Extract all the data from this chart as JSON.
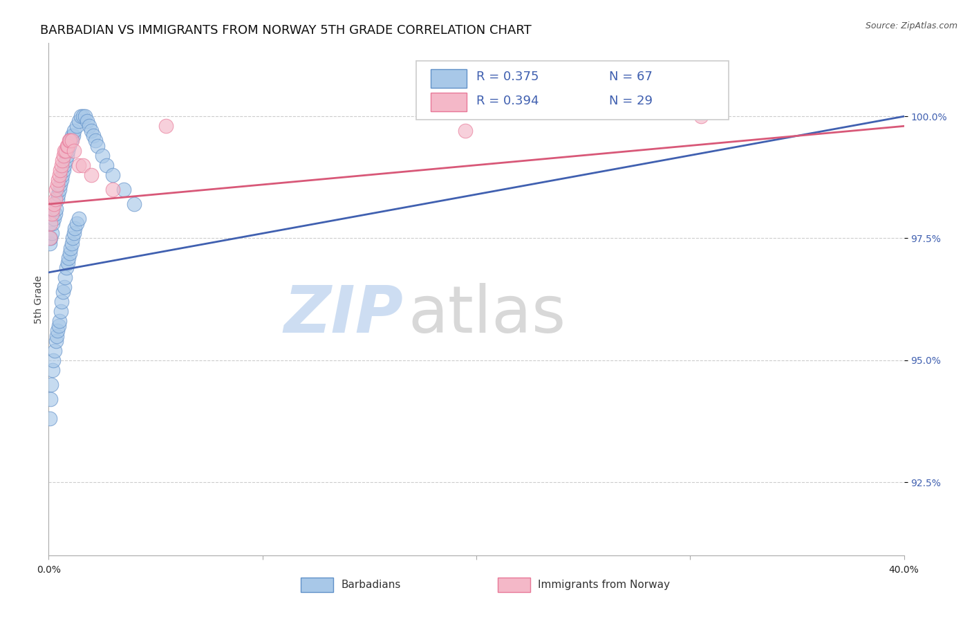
{
  "title": "BARBADIAN VS IMMIGRANTS FROM NORWAY 5TH GRADE CORRELATION CHART",
  "source": "Source: ZipAtlas.com",
  "ylabel": "5th Grade",
  "xlim": [
    0.0,
    40.0
  ],
  "ylim": [
    91.0,
    101.5
  ],
  "yticks": [
    92.5,
    95.0,
    97.5,
    100.0
  ],
  "ytick_labels": [
    "92.5%",
    "95.0%",
    "97.5%",
    "100.0%"
  ],
  "xticks": [
    0.0,
    10.0,
    20.0,
    30.0,
    40.0
  ],
  "blue_R": 0.375,
  "blue_N": 67,
  "pink_R": 0.394,
  "pink_N": 29,
  "blue_color": "#a8c8e8",
  "pink_color": "#f4b8c8",
  "blue_edge_color": "#6090c8",
  "pink_edge_color": "#e87898",
  "blue_line_color": "#4060b0",
  "pink_line_color": "#d85878",
  "text_color": "#4060b0",
  "background_color": "#ffffff",
  "grid_color": "#cccccc",
  "title_fontsize": 13,
  "axis_label_fontsize": 10,
  "tick_fontsize": 10,
  "legend_fontsize": 13,
  "blue_x": [
    0.05,
    0.1,
    0.15,
    0.2,
    0.25,
    0.3,
    0.35,
    0.4,
    0.45,
    0.5,
    0.55,
    0.6,
    0.65,
    0.7,
    0.75,
    0.8,
    0.85,
    0.9,
    0.95,
    1.0,
    1.05,
    1.1,
    1.15,
    1.2,
    1.3,
    1.4,
    1.5,
    1.6,
    1.7,
    1.8,
    1.9,
    2.0,
    2.1,
    2.2,
    2.3,
    2.5,
    2.7,
    3.0,
    3.5,
    4.0,
    0.05,
    0.08,
    0.12,
    0.18,
    0.22,
    0.28,
    0.33,
    0.38,
    0.42,
    0.48,
    0.52,
    0.58,
    0.62,
    0.68,
    0.72,
    0.78,
    0.82,
    0.88,
    0.92,
    0.98,
    1.02,
    1.08,
    1.12,
    1.18,
    1.22,
    1.32,
    1.42
  ],
  "blue_y": [
    97.4,
    97.5,
    97.6,
    97.8,
    97.9,
    98.0,
    98.1,
    98.3,
    98.4,
    98.5,
    98.6,
    98.7,
    98.8,
    98.9,
    99.0,
    99.1,
    99.2,
    99.3,
    99.4,
    99.5,
    99.5,
    99.6,
    99.6,
    99.7,
    99.8,
    99.9,
    100.0,
    100.0,
    100.0,
    99.9,
    99.8,
    99.7,
    99.6,
    99.5,
    99.4,
    99.2,
    99.0,
    98.8,
    98.5,
    98.2,
    93.8,
    94.2,
    94.5,
    94.8,
    95.0,
    95.2,
    95.4,
    95.5,
    95.6,
    95.7,
    95.8,
    96.0,
    96.2,
    96.4,
    96.5,
    96.7,
    96.9,
    97.0,
    97.1,
    97.2,
    97.3,
    97.4,
    97.5,
    97.6,
    97.7,
    97.8,
    97.9
  ],
  "pink_x": [
    0.05,
    0.1,
    0.15,
    0.2,
    0.25,
    0.3,
    0.35,
    0.4,
    0.45,
    0.5,
    0.55,
    0.6,
    0.65,
    0.7,
    0.75,
    0.8,
    0.85,
    0.9,
    0.95,
    1.0,
    1.1,
    1.2,
    1.4,
    1.6,
    2.0,
    3.0,
    5.5,
    19.5,
    30.5
  ],
  "pink_y": [
    97.5,
    97.8,
    98.0,
    98.1,
    98.2,
    98.3,
    98.5,
    98.6,
    98.7,
    98.8,
    98.9,
    99.0,
    99.1,
    99.2,
    99.3,
    99.3,
    99.4,
    99.4,
    99.5,
    99.5,
    99.5,
    99.3,
    99.0,
    99.0,
    98.8,
    98.5,
    99.8,
    99.7,
    100.0
  ],
  "blue_trend_x": [
    0.0,
    40.0
  ],
  "blue_trend_y": [
    96.8,
    100.0
  ],
  "pink_trend_x": [
    0.0,
    40.0
  ],
  "pink_trend_y": [
    98.2,
    99.8
  ],
  "watermark_zip_color": "#c5d8f0",
  "watermark_atlas_color": "#b8b8b8"
}
